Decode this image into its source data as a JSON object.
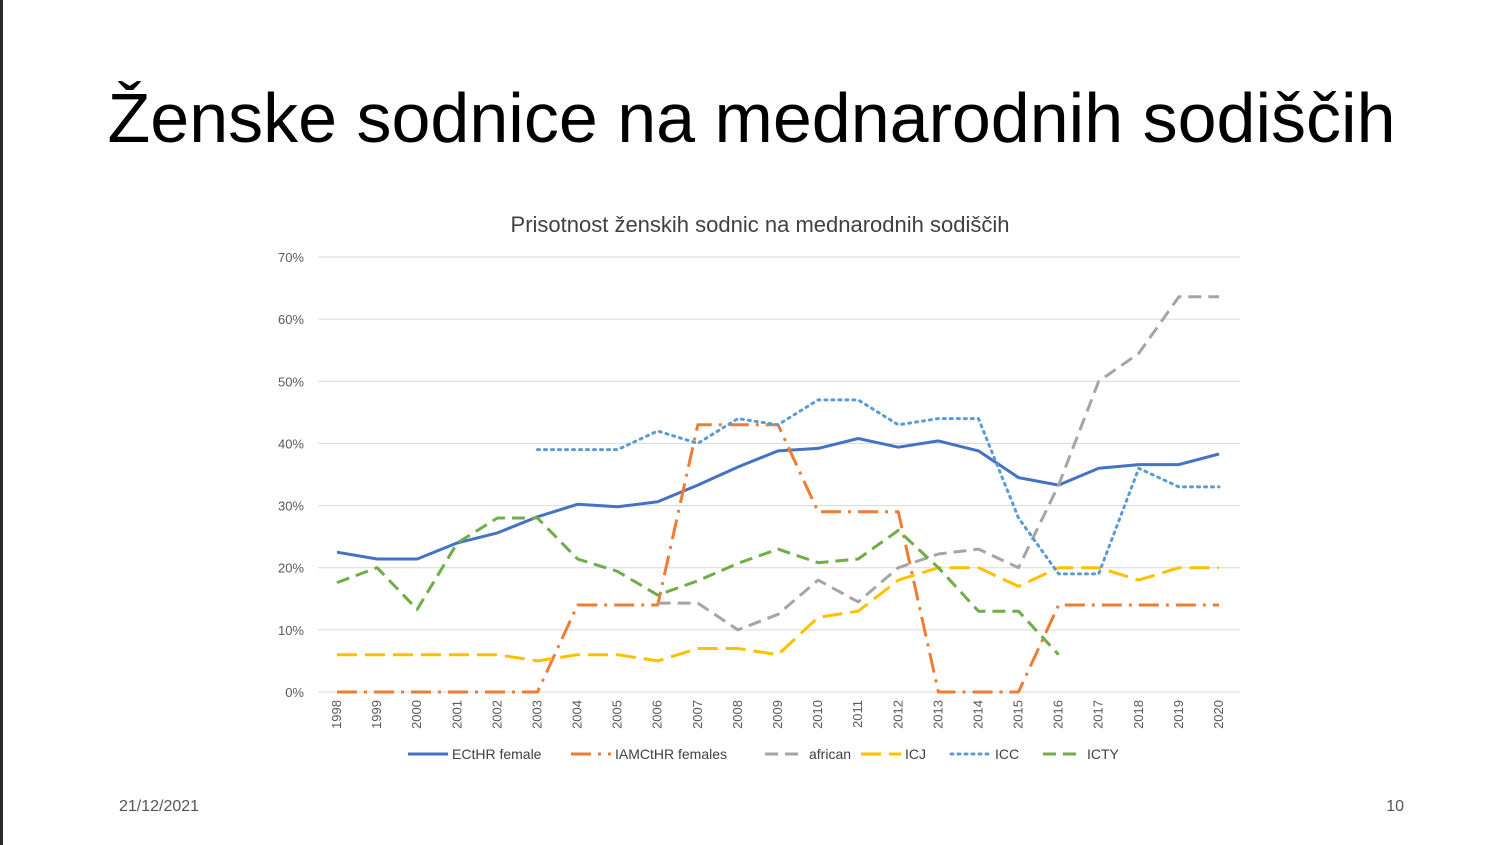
{
  "slide": {
    "title": "Ženske sodnice na mednarodnih sodiščih",
    "date": "21/12/2021",
    "page_number": "10"
  },
  "chart_data": {
    "type": "line",
    "title": "Prisotnost ženskih sodnic na mednarodnih sodiščih",
    "xlabel": "",
    "ylabel": "",
    "ylim": [
      0,
      0.7
    ],
    "y_ticks": [
      0,
      0.1,
      0.2,
      0.3,
      0.4,
      0.5,
      0.6,
      0.7
    ],
    "y_tick_labels": [
      "0%",
      "10%",
      "20%",
      "30%",
      "40%",
      "50%",
      "60%",
      "70%"
    ],
    "grid": true,
    "legend_position": "bottom",
    "categories": [
      "1998",
      "1999",
      "2000",
      "2001",
      "2002",
      "2003",
      "2004",
      "2005",
      "2006",
      "2007",
      "2008",
      "2009",
      "2010",
      "2011",
      "2012",
      "2013",
      "2014",
      "2015",
      "2016",
      "2017",
      "2018",
      "2019",
      "2020"
    ],
    "series": [
      {
        "name": "ECtHR female",
        "color": "#4472C4",
        "dash": "solid",
        "values": [
          0.225,
          0.214,
          0.214,
          0.24,
          0.256,
          0.282,
          0.302,
          0.298,
          0.306,
          0.333,
          0.362,
          0.388,
          0.392,
          0.408,
          0.394,
          0.404,
          0.388,
          0.345,
          0.333,
          0.36,
          0.366,
          0.366,
          0.383
        ]
      },
      {
        "name": "IAMCtHR females",
        "color": "#ED7D31",
        "dash": "long-dash-dot",
        "values": [
          0,
          0,
          0,
          0,
          0,
          0,
          0.14,
          0.14,
          0.14,
          0.43,
          0.43,
          0.43,
          0.29,
          0.29,
          0.29,
          0,
          0,
          0,
          0.14,
          0.14,
          0.14,
          0.14,
          0.14
        ]
      },
      {
        "name": "african",
        "color": "#A5A5A5",
        "dash": "dash",
        "values": [
          null,
          null,
          null,
          null,
          null,
          null,
          null,
          null,
          0.143,
          0.143,
          0.1,
          0.125,
          0.18,
          0.145,
          0.2,
          0.222,
          0.23,
          0.2,
          0.333,
          0.5,
          0.545,
          0.636,
          0.636
        ]
      },
      {
        "name": "ICJ",
        "color": "#FFC000",
        "dash": "long-dash",
        "values": [
          0.06,
          0.06,
          0.06,
          0.06,
          0.06,
          0.05,
          0.06,
          0.06,
          0.05,
          0.07,
          0.07,
          0.06,
          0.12,
          0.13,
          0.18,
          0.2,
          0.2,
          0.17,
          0.2,
          0.2,
          0.18,
          0.2,
          0.2
        ]
      },
      {
        "name": "ICC",
        "color": "#5B9BD5",
        "dash": "dot",
        "values": [
          null,
          null,
          null,
          null,
          null,
          0.39,
          0.39,
          0.39,
          0.42,
          0.4,
          0.44,
          0.43,
          0.47,
          0.47,
          0.43,
          0.44,
          0.44,
          0.28,
          0.19,
          0.19,
          0.36,
          0.33,
          0.33
        ]
      },
      {
        "name": "ICTY",
        "color": "#70AD47",
        "dash": "dash",
        "values": [
          0.176,
          0.2,
          0.133,
          0.24,
          0.28,
          0.28,
          0.214,
          0.194,
          0.156,
          0.179,
          0.207,
          0.23,
          0.208,
          0.214,
          0.26,
          0.2,
          0.13,
          0.13,
          0.06,
          null,
          null,
          null,
          null
        ]
      }
    ]
  }
}
